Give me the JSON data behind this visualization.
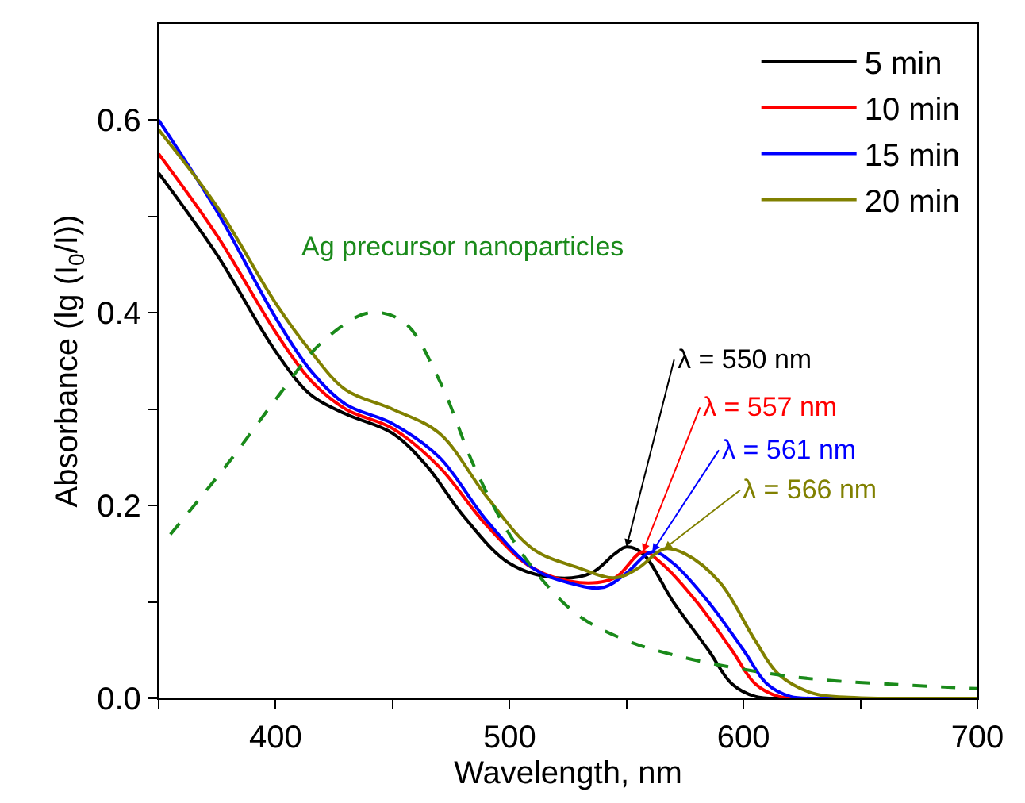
{
  "chart_data": {
    "type": "line",
    "xlabel": "Wavelength, nm",
    "ylabel": "Absorbance (lg (I$_{0}$/I))",
    "xlim": [
      350,
      700
    ],
    "ylim": [
      0,
      0.7
    ],
    "xticks": [
      {
        "value": 350,
        "label": null
      },
      400,
      {
        "value": 450,
        "label": null
      },
      500,
      {
        "value": 550,
        "label": null
      },
      600,
      {
        "value": 650,
        "label": null
      },
      700
    ],
    "yticks": [
      "0.0",
      {
        "value": 0.1,
        "label": null
      },
      0.2,
      {
        "value": 0.3,
        "label": null
      },
      0.4,
      {
        "value": 0.5,
        "label": null
      },
      0.6
    ],
    "legend": "top right",
    "series": [
      {
        "name": "5 min",
        "color": "#000000",
        "x": [
          350,
          375,
          400,
          415,
          430,
          450,
          465,
          480,
          500,
          520,
          535,
          545,
          550,
          557,
          570,
          585,
          595,
          605,
          620,
          700
        ],
        "values": [
          0.545,
          0.46,
          0.36,
          0.315,
          0.295,
          0.275,
          0.24,
          0.19,
          0.14,
          0.125,
          0.13,
          0.15,
          0.157,
          0.15,
          0.1,
          0.05,
          0.015,
          0.002,
          0,
          0
        ]
      },
      {
        "name": "10 min",
        "color": "#ff0000",
        "x": [
          350,
          375,
          400,
          415,
          430,
          450,
          470,
          490,
          510,
          530,
          545,
          557,
          565,
          580,
          595,
          605,
          615,
          630,
          700
        ],
        "values": [
          0.565,
          0.48,
          0.38,
          0.33,
          0.3,
          0.28,
          0.24,
          0.18,
          0.135,
          0.12,
          0.125,
          0.152,
          0.14,
          0.1,
          0.05,
          0.015,
          0.002,
          0,
          0
        ]
      },
      {
        "name": "15 min",
        "color": "#0000ff",
        "x": [
          350,
          375,
          400,
          415,
          430,
          450,
          470,
          490,
          510,
          525,
          540,
          550,
          561,
          570,
          585,
          600,
          610,
          620,
          635,
          700
        ],
        "values": [
          0.6,
          0.505,
          0.395,
          0.34,
          0.305,
          0.285,
          0.25,
          0.185,
          0.135,
          0.12,
          0.115,
          0.13,
          0.152,
          0.14,
          0.1,
          0.05,
          0.015,
          0.002,
          0,
          0
        ]
      },
      {
        "name": "20 min",
        "color": "#808000",
        "x": [
          350,
          375,
          400,
          415,
          430,
          450,
          470,
          490,
          510,
          530,
          545,
          555,
          566,
          575,
          590,
          605,
          615,
          630,
          645,
          700
        ],
        "values": [
          0.59,
          0.51,
          0.41,
          0.36,
          0.32,
          0.3,
          0.275,
          0.21,
          0.155,
          0.135,
          0.125,
          0.135,
          0.155,
          0.15,
          0.12,
          0.06,
          0.025,
          0.005,
          0.001,
          0
        ]
      },
      {
        "name": "Ag precursor nanoparticles",
        "color": "#1a8a1a",
        "line_style": "dashed",
        "x": [
          355,
          380,
          400,
          420,
          440,
          455,
          470,
          485,
          500,
          515,
          530,
          550,
          570,
          600,
          630,
          660,
          700
        ],
        "values": [
          0.17,
          0.245,
          0.31,
          0.37,
          0.4,
          0.39,
          0.33,
          0.24,
          0.17,
          0.12,
          0.085,
          0.06,
          0.045,
          0.03,
          0.02,
          0.015,
          0.01
        ]
      }
    ],
    "annotations": [
      {
        "text": "λ = 550 nm",
        "x": 550,
        "y": 0.157
      },
      {
        "text": "λ = 557 nm",
        "x": 557,
        "y": 0.152
      },
      {
        "text": "λ = 561 nm",
        "x": 561,
        "y": 0.152
      },
      {
        "text": "λ = 566 nm",
        "x": 566,
        "y": 0.155
      }
    ]
  }
}
